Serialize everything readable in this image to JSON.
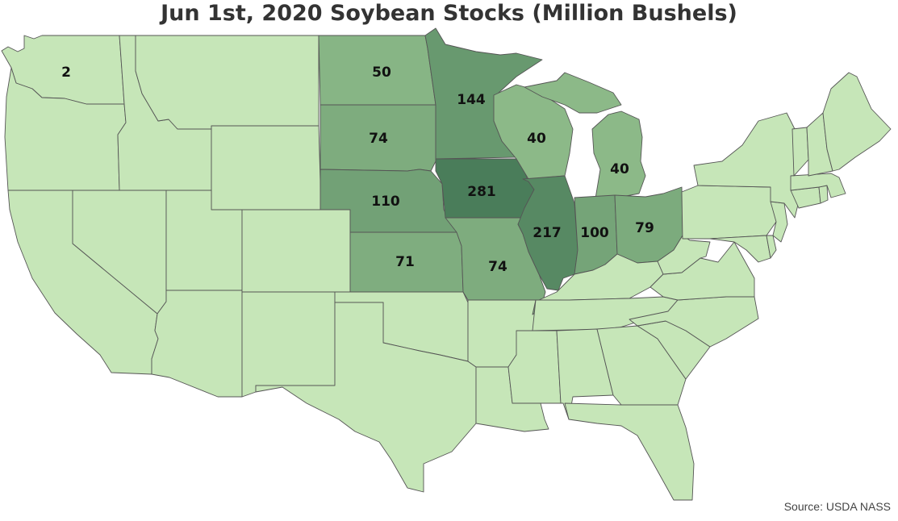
{
  "title": "Jun 1st, 2020 Soybean Stocks (Million Bushels)",
  "source": "Source: USDA NASS",
  "colors": {
    "base": "#c6e6b8",
    "scale_low": "#b4dea4",
    "scale_high": "#4a7d5a",
    "border": "#555555"
  },
  "states": [
    {
      "code": "WA",
      "value": 2
    },
    {
      "code": "ND",
      "value": 50
    },
    {
      "code": "MN",
      "value": 144
    },
    {
      "code": "SD",
      "value": 74
    },
    {
      "code": "WI",
      "value": 40
    },
    {
      "code": "MI",
      "value": 40
    },
    {
      "code": "IA",
      "value": 281
    },
    {
      "code": "NE",
      "value": 110
    },
    {
      "code": "IL",
      "value": 217
    },
    {
      "code": "IN",
      "value": 100
    },
    {
      "code": "OH",
      "value": 79
    },
    {
      "code": "KS",
      "value": 71
    },
    {
      "code": "MO",
      "value": 74
    }
  ]
}
